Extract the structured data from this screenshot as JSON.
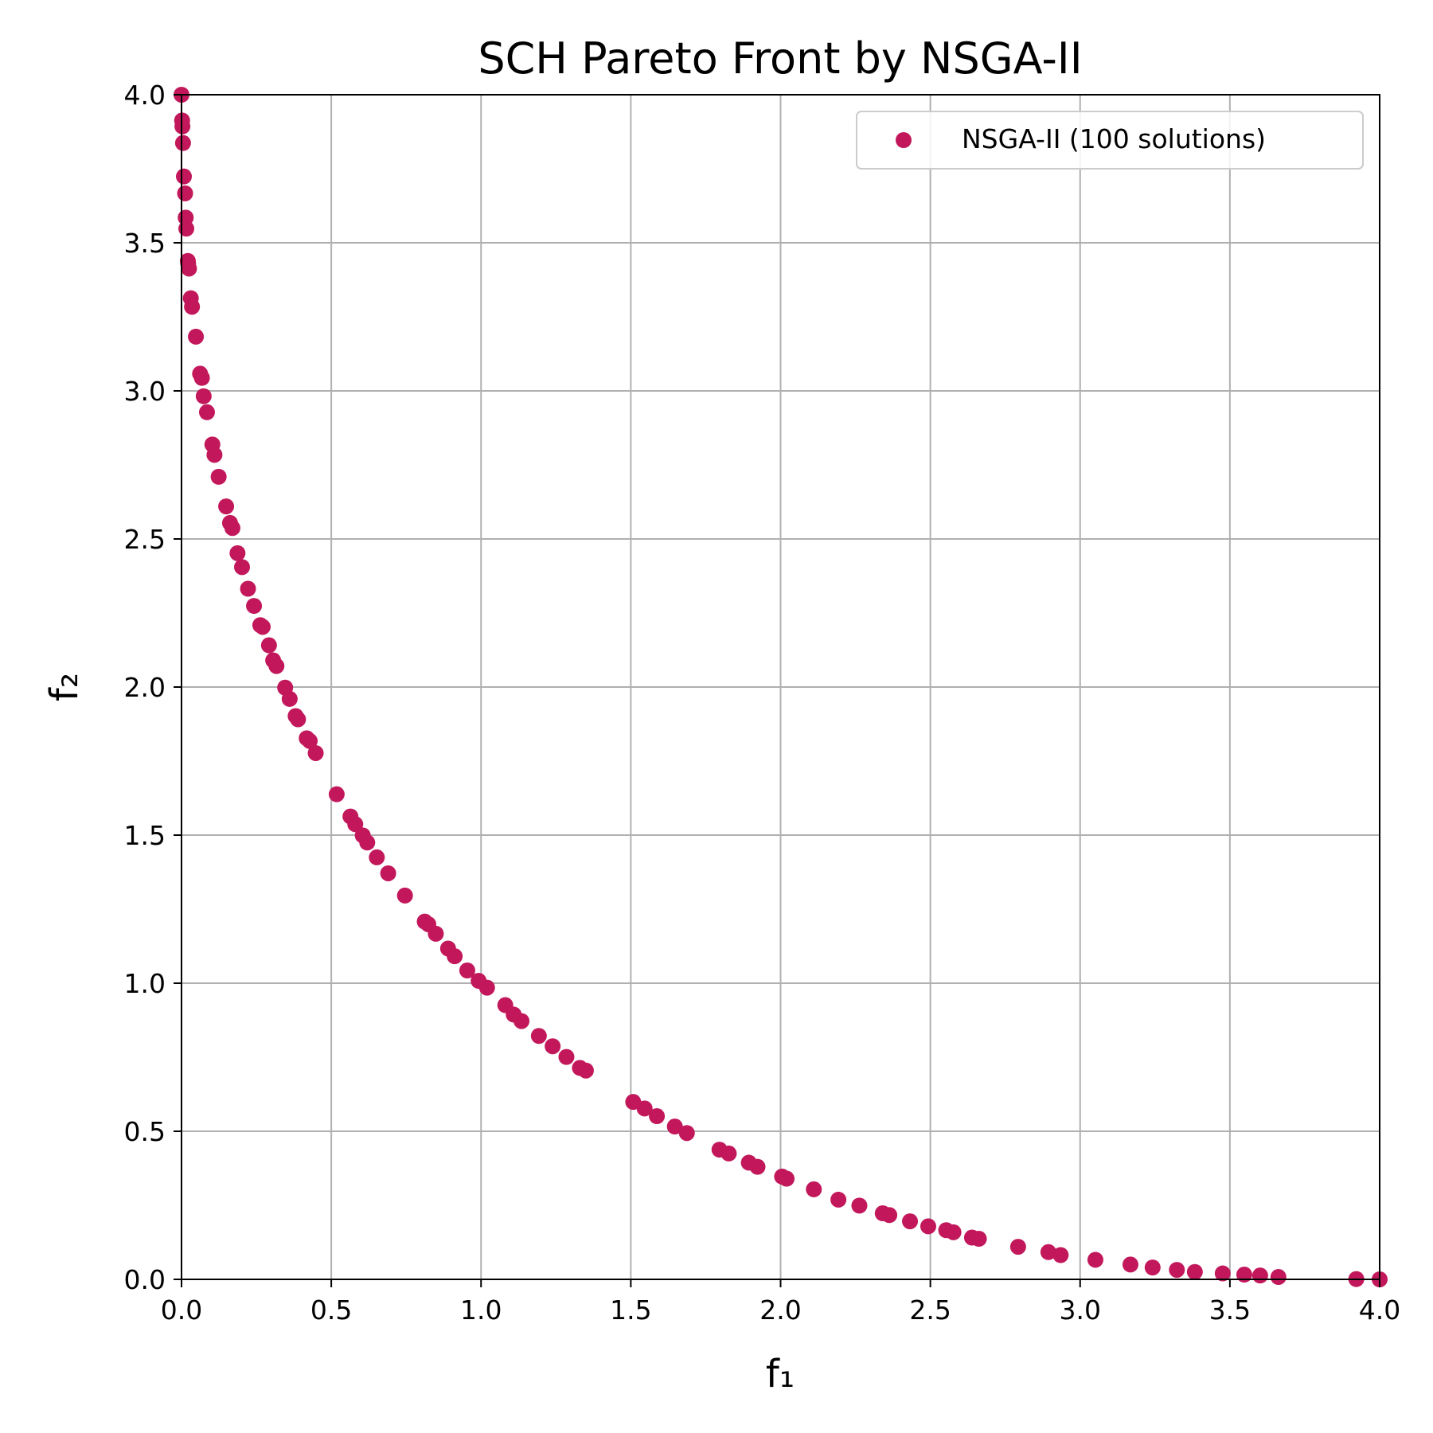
{
  "chart_data": {
    "type": "scatter",
    "title": "SCH Pareto Front by NSGA-II",
    "xlabel": "f₁",
    "ylabel": "f₂",
    "xlim": [
      0,
      4
    ],
    "ylim": [
      0,
      4
    ],
    "xticks": [
      "0.0",
      "0.5",
      "1.0",
      "1.5",
      "2.0",
      "2.5",
      "3.0",
      "3.5",
      "4.0"
    ],
    "yticks": [
      "0.0",
      "0.5",
      "1.0",
      "1.5",
      "2.0",
      "2.5",
      "3.0",
      "3.5",
      "4.0"
    ],
    "grid": true,
    "legend_position": "top-right",
    "series": [
      {
        "name": "NSGA-II (100 solutions)",
        "color": "#c2185b",
        "x": [
          0.0,
          0.002,
          0.003,
          0.005,
          0.008,
          0.012,
          0.014,
          0.016,
          0.021,
          0.022,
          0.025,
          0.031,
          0.035,
          0.048,
          0.062,
          0.068,
          0.074,
          0.085,
          0.103,
          0.11,
          0.124,
          0.149,
          0.162,
          0.17,
          0.187,
          0.202,
          0.222,
          0.242,
          0.263,
          0.271,
          0.292,
          0.306,
          0.317,
          0.346,
          0.361,
          0.381,
          0.389,
          0.418,
          0.428,
          0.448,
          0.518,
          0.564,
          0.58,
          0.605,
          0.62,
          0.652,
          0.69,
          0.746,
          0.812,
          0.824,
          0.849,
          0.89,
          0.912,
          0.954,
          0.992,
          1.02,
          1.081,
          1.109,
          1.135,
          1.193,
          1.239,
          1.285,
          1.33,
          1.35,
          1.508,
          1.546,
          1.587,
          1.647,
          1.687,
          1.796,
          1.827,
          1.894,
          1.923,
          2.005,
          2.02,
          2.111,
          2.193,
          2.263,
          2.341,
          2.363,
          2.432,
          2.493,
          2.553,
          2.577,
          2.639,
          2.662,
          2.793,
          2.894,
          2.935,
          3.051,
          3.168,
          3.242,
          3.323,
          3.383,
          3.476,
          3.548,
          3.601,
          3.662,
          3.922,
          4.0
        ],
        "y": [
          4.0,
          3.913,
          3.893,
          3.837,
          3.724,
          3.667,
          3.585,
          3.548,
          3.439,
          3.431,
          3.413,
          3.313,
          3.284,
          3.183,
          3.058,
          3.044,
          2.982,
          2.928,
          2.819,
          2.784,
          2.71,
          2.61,
          2.554,
          2.537,
          2.452,
          2.405,
          2.332,
          2.274,
          2.209,
          2.203,
          2.141,
          2.09,
          2.071,
          1.998,
          1.96,
          1.902,
          1.891,
          1.827,
          1.818,
          1.777,
          1.638,
          1.563,
          1.537,
          1.499,
          1.475,
          1.425,
          1.371,
          1.296,
          1.208,
          1.199,
          1.167,
          1.117,
          1.091,
          1.043,
          1.008,
          0.985,
          0.926,
          0.894,
          0.872,
          0.822,
          0.787,
          0.751,
          0.714,
          0.705,
          0.599,
          0.577,
          0.551,
          0.516,
          0.494,
          0.438,
          0.425,
          0.394,
          0.38,
          0.347,
          0.34,
          0.304,
          0.269,
          0.249,
          0.223,
          0.217,
          0.196,
          0.179,
          0.166,
          0.159,
          0.141,
          0.137,
          0.11,
          0.092,
          0.082,
          0.066,
          0.05,
          0.04,
          0.032,
          0.025,
          0.02,
          0.016,
          0.013,
          0.008,
          0.001,
          0.0
        ]
      }
    ]
  }
}
